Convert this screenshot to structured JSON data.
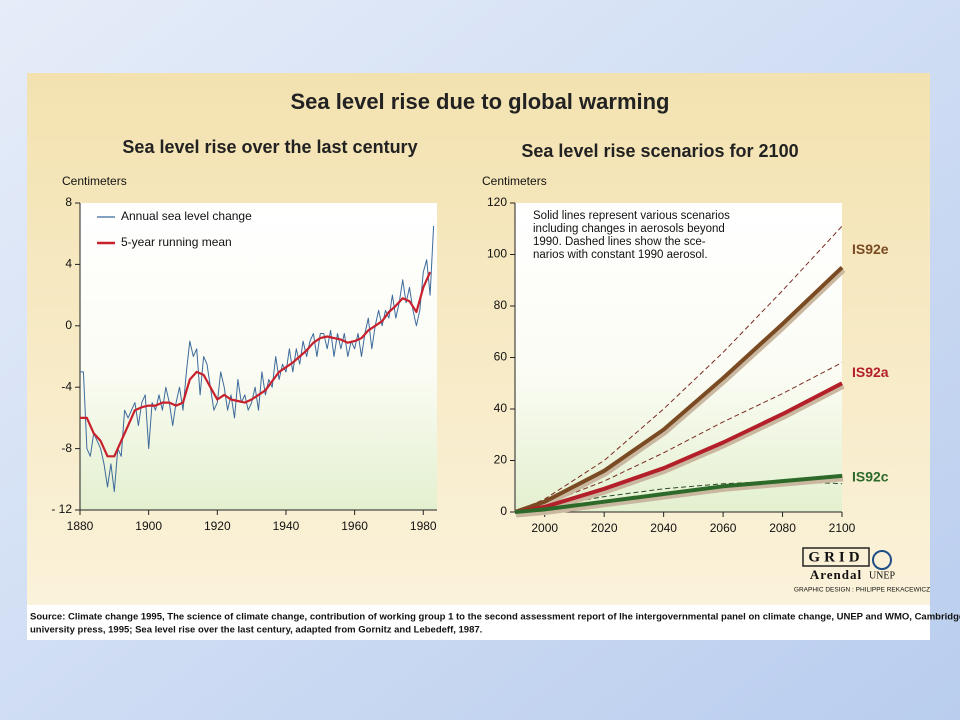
{
  "title": "Sea level rise due to global warming",
  "chart_data": [
    {
      "type": "line",
      "title": "Sea level rise over the last century",
      "ylabel": "Centimeters",
      "xlim": [
        1880,
        1984
      ],
      "xticks": [
        1880,
        1900,
        1920,
        1940,
        1960,
        1980
      ],
      "ylim": [
        -12,
        8
      ],
      "yticks": [
        {
          "value": -12,
          "label": "- 12"
        },
        -8,
        -4,
        0,
        4,
        8
      ],
      "legend": "upper left",
      "series": [
        {
          "name": "Annual sea level change",
          "color": "#3d6a9a",
          "x": [
            1880,
            1881,
            1882,
            1883,
            1884,
            1885,
            1886,
            1887,
            1888,
            1889,
            1890,
            1891,
            1892,
            1893,
            1894,
            1895,
            1896,
            1897,
            1898,
            1899,
            1900,
            1901,
            1902,
            1903,
            1904,
            1905,
            1906,
            1907,
            1908,
            1909,
            1910,
            1911,
            1912,
            1913,
            1914,
            1915,
            1916,
            1917,
            1918,
            1919,
            1920,
            1921,
            1922,
            1923,
            1924,
            1925,
            1926,
            1927,
            1928,
            1929,
            1930,
            1931,
            1932,
            1933,
            1934,
            1935,
            1936,
            1937,
            1938,
            1939,
            1940,
            1941,
            1942,
            1943,
            1944,
            1945,
            1946,
            1947,
            1948,
            1949,
            1950,
            1951,
            1952,
            1953,
            1954,
            1955,
            1956,
            1957,
            1958,
            1959,
            1960,
            1961,
            1962,
            1963,
            1964,
            1965,
            1966,
            1967,
            1968,
            1969,
            1970,
            1971,
            1972,
            1973,
            1974,
            1975,
            1976,
            1977,
            1978,
            1979,
            1980,
            1981,
            1982,
            1983
          ],
          "values": [
            -3,
            -3,
            -8,
            -8.5,
            -7,
            -7.5,
            -8,
            -9,
            -10.5,
            -9,
            -10.8,
            -8,
            -8.5,
            -5.5,
            -6,
            -5.5,
            -5,
            -6.5,
            -5,
            -4.5,
            -8,
            -5,
            -5.5,
            -4.5,
            -5.5,
            -4,
            -5,
            -6.5,
            -5,
            -4,
            -5.5,
            -3,
            -1,
            -2,
            -1.5,
            -4.5,
            -2,
            -2.5,
            -4,
            -5.5,
            -5,
            -3,
            -4,
            -5.5,
            -4.5,
            -6,
            -3.5,
            -5,
            -4.5,
            -5.5,
            -5,
            -4,
            -5.5,
            -3,
            -4.5,
            -3.5,
            -4,
            -2,
            -3.5,
            -2.5,
            -3,
            -1.5,
            -3,
            -1.5,
            -2.5,
            -1,
            -2,
            -1,
            -0.5,
            -2,
            -0.5,
            -0.5,
            -1.5,
            -0.3,
            -2,
            -0.5,
            -1.5,
            -0.5,
            -2,
            -1,
            -1.5,
            -0.5,
            -2,
            -0.5,
            0.5,
            -1.5,
            0,
            1,
            0,
            1,
            0.5,
            2,
            0.5,
            1.5,
            3,
            1.5,
            2.5,
            1,
            0,
            1,
            3.5,
            4.3,
            2,
            6.5
          ]
        },
        {
          "name": "5-year running mean",
          "color": "#c8202c",
          "x": [
            1880,
            1882,
            1884,
            1886,
            1888,
            1890,
            1892,
            1894,
            1896,
            1898,
            1900,
            1902,
            1904,
            1906,
            1908,
            1910,
            1912,
            1914,
            1916,
            1918,
            1920,
            1922,
            1924,
            1926,
            1928,
            1930,
            1932,
            1934,
            1936,
            1938,
            1940,
            1942,
            1944,
            1946,
            1948,
            1950,
            1952,
            1954,
            1956,
            1958,
            1960,
            1962,
            1964,
            1966,
            1968,
            1970,
            1972,
            1974,
            1976,
            1978,
            1980,
            1982
          ],
          "values": [
            -6,
            -6,
            -7,
            -7.5,
            -8.5,
            -8.5,
            -7.5,
            -6.5,
            -5.5,
            -5.3,
            -5.2,
            -5.2,
            -5,
            -5,
            -5.2,
            -5,
            -3.5,
            -3,
            -3.2,
            -4,
            -4.8,
            -4.5,
            -4.8,
            -4.9,
            -5,
            -4.8,
            -4.5,
            -4.2,
            -3.6,
            -3,
            -2.7,
            -2.4,
            -2,
            -1.6,
            -1.1,
            -0.8,
            -0.7,
            -0.8,
            -0.9,
            -1.1,
            -1,
            -0.8,
            -0.3,
            0,
            0.3,
            0.9,
            1.3,
            1.8,
            1.6,
            0.9,
            2.5,
            3.5
          ]
        }
      ]
    },
    {
      "type": "line",
      "title": "Sea level rise scenarios for 2100",
      "ylabel": "Centimeters",
      "xlim": [
        1990,
        2100
      ],
      "xticks": [
        2000,
        2020,
        2040,
        2060,
        2080,
        2100
      ],
      "ylim": [
        0,
        120
      ],
      "yticks": [
        0,
        20,
        40,
        60,
        80,
        100,
        120
      ],
      "annotation": [
        "Solid lines represent various scenarios",
        "including changes in aerosols beyond",
        "1990. Dashed lines show the sce-",
        "narios with constant 1990 aerosol."
      ],
      "series": [
        {
          "name": "IS92e",
          "color": "#7a4a22",
          "x": [
            1990,
            2000,
            2020,
            2040,
            2060,
            2080,
            2100
          ],
          "values": [
            0,
            4,
            16,
            32,
            52,
            73,
            95
          ]
        },
        {
          "name": "IS92a",
          "color": "#b3202a",
          "x": [
            1990,
            2000,
            2020,
            2040,
            2060,
            2080,
            2100
          ],
          "values": [
            0,
            2,
            9,
            17,
            27,
            38,
            50
          ]
        },
        {
          "name": "IS92c",
          "color": "#2d6a2a",
          "x": [
            1990,
            2000,
            2020,
            2040,
            2060,
            2080,
            2100
          ],
          "values": [
            0,
            1,
            4,
            7,
            10,
            12,
            14
          ]
        },
        {
          "color": "#7a2a22",
          "dashed": true,
          "x": [
            1990,
            2000,
            2020,
            2040,
            2060,
            2080,
            2100
          ],
          "values": [
            0,
            5,
            20,
            40,
            62,
            86,
            111
          ]
        },
        {
          "color": "#7a2a22",
          "dashed": true,
          "x": [
            1990,
            2000,
            2020,
            2040,
            2060,
            2080,
            2100
          ],
          "values": [
            0,
            3,
            12,
            23,
            35,
            46,
            58
          ]
        },
        {
          "color": "#2d4a2a",
          "dashed": true,
          "x": [
            1990,
            2000,
            2020,
            2040,
            2060,
            2080,
            2100
          ],
          "values": [
            0,
            2,
            6,
            9,
            11,
            12,
            11
          ]
        }
      ]
    }
  ],
  "logo": {
    "name": "GRID",
    "place": "Arendal",
    "org": "UNEP",
    "credit": "GRAPHIC DESIGN : PHILIPPE REKACEWICZ"
  },
  "source": [
    "Source: Climate change 1995, The science of climate change, contribution of working group 1 to the second assessment report of lhe intergovernmental panel on climate change, UNEP and WMO, Cambridge",
    "university press,  1995; Sea level rise over the last century, adapted from Gornitz and Lebedeff, 1987."
  ]
}
